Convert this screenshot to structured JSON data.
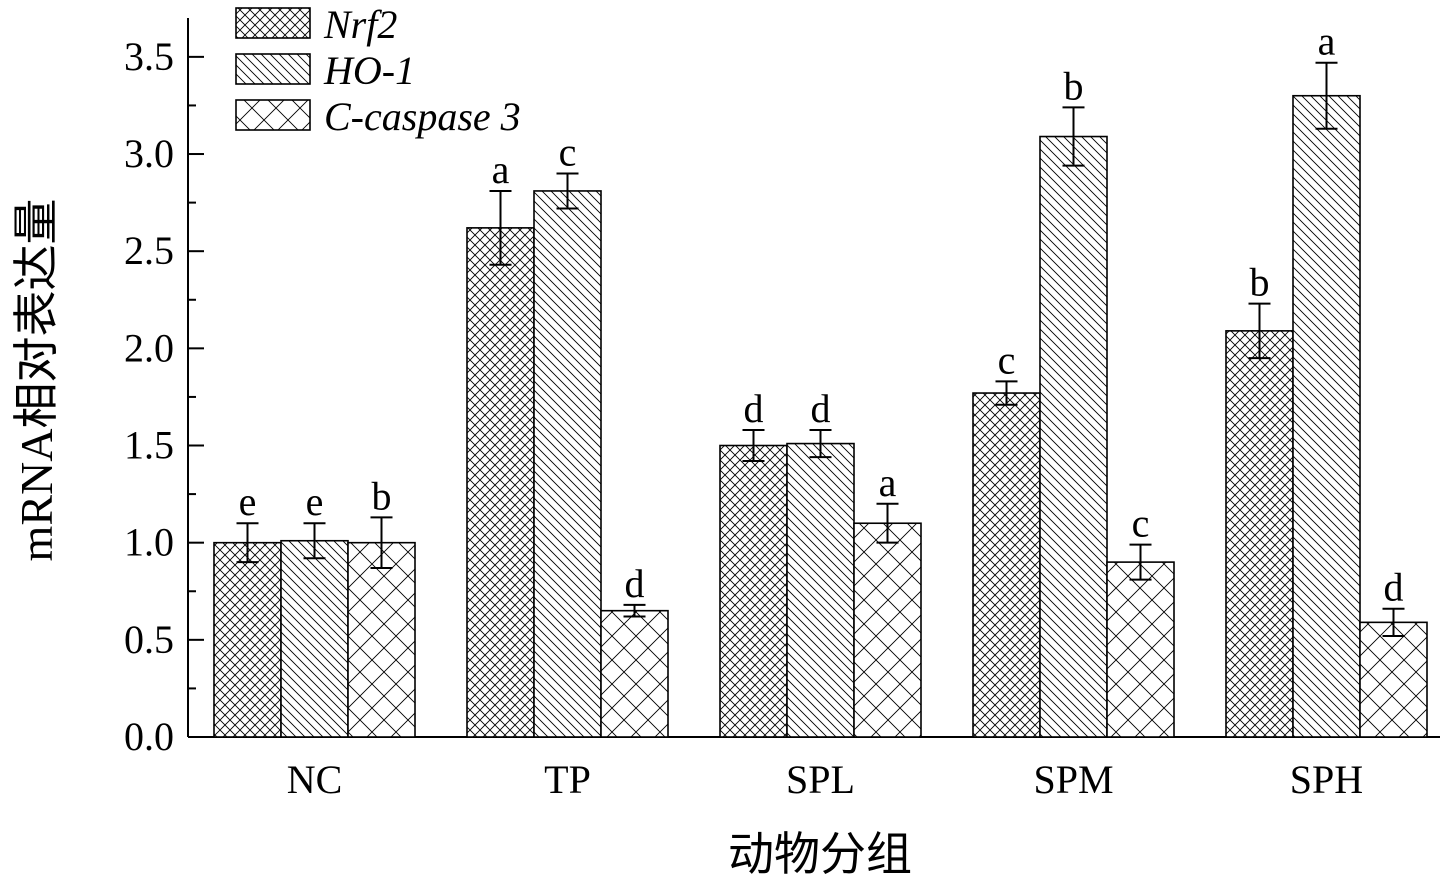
{
  "chart_data": {
    "type": "bar",
    "categories": [
      "NC",
      "TP",
      "SPL",
      "SPM",
      "SPH"
    ],
    "series": [
      {
        "name": "Nrf2",
        "pattern": "crosshatch",
        "values": [
          1.0,
          2.62,
          1.5,
          1.77,
          2.09
        ],
        "errors": [
          0.1,
          0.19,
          0.08,
          0.06,
          0.14
        ],
        "labels": [
          "e",
          "a",
          "d",
          "c",
          "b"
        ]
      },
      {
        "name": "HO-1",
        "pattern": "diagonal",
        "values": [
          1.01,
          2.81,
          1.51,
          3.09,
          3.3
        ],
        "errors": [
          0.09,
          0.09,
          0.07,
          0.15,
          0.17
        ],
        "labels": [
          "e",
          "c",
          "d",
          "b",
          "a"
        ]
      },
      {
        "name": "C-caspase 3",
        "pattern": "wide-cross",
        "values": [
          1.0,
          0.65,
          1.1,
          0.9,
          0.59
        ],
        "errors": [
          0.13,
          0.03,
          0.1,
          0.09,
          0.07
        ],
        "labels": [
          "b",
          "d",
          "a",
          "c",
          "d"
        ]
      }
    ],
    "xlabel": "动物分组",
    "ylabel": "mRNA相对表达量",
    "ylim": [
      0,
      3.7
    ],
    "yticks": [
      "0.0",
      "0.5",
      "1.0",
      "1.5",
      "2.0",
      "2.5",
      "3.0",
      "3.5"
    ],
    "grid": false,
    "legend_position": "top-left",
    "colors": {
      "bar_fill": "#ffffff",
      "stroke": "#000000"
    }
  }
}
